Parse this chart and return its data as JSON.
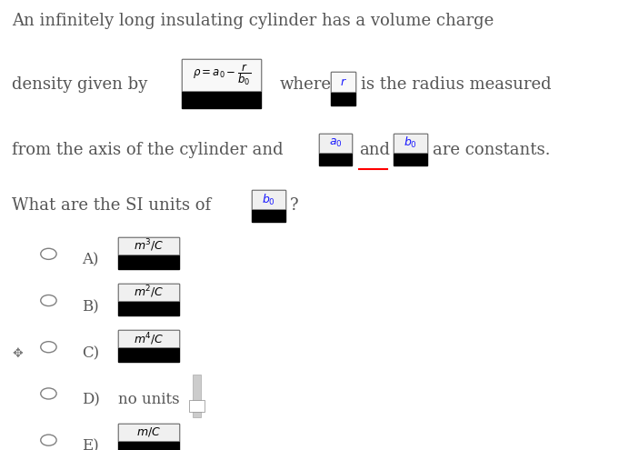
{
  "title_line1": "An infinitely long insulating cylinder has a volume charge",
  "text_density": "density given by",
  "text_where": "where",
  "text_radius": "is the radius measured",
  "text_axis": "from the axis of the cylinder and",
  "text_and": "and",
  "text_constants": "are constants.",
  "text_units": "What are the SI units of",
  "options": [
    {
      "label": "A)",
      "text": "$m^3/C$",
      "has_box": true
    },
    {
      "label": "B)",
      "text": "$m^2/C$",
      "has_box": true
    },
    {
      "label": "C)",
      "text": "$m^4/C$",
      "has_box": true
    },
    {
      "label": "D)",
      "text": "no units",
      "has_box": false
    },
    {
      "label": "E)",
      "text": "$m/C$",
      "has_box": true
    }
  ],
  "bg_color": "#ffffff",
  "text_color": "#555555",
  "font_size_title": 13,
  "font_size_option": 12
}
